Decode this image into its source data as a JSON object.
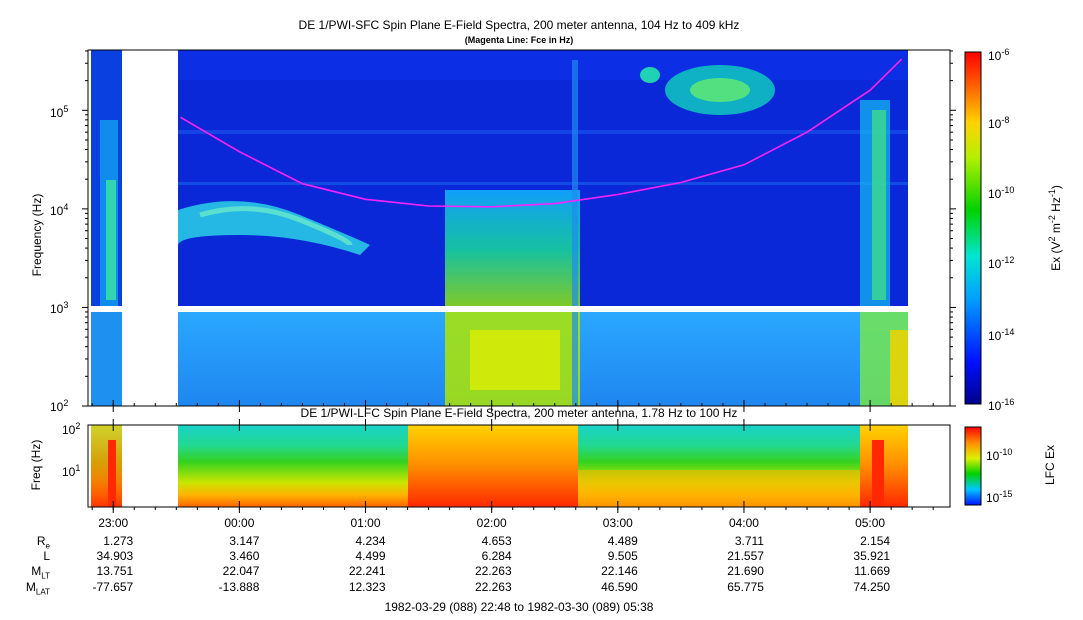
{
  "colors": {
    "magenta_line": "#ff22ff",
    "background_spectrum": "#0a28d8",
    "lfc_floor": "#19d2c8"
  },
  "chart_data": [
    {
      "type": "heatmap",
      "title": "DE 1/PWI-SFC  Spin Plane E-Field Spectra, 200 meter antenna, 104 Hz to 409 kHz",
      "subtitle": "(Magenta Line: Fce in Hz)",
      "ylabel": "Frequency (Hz)",
      "yscale": "log",
      "ylim": [
        100,
        409000
      ],
      "y_ticks": [
        {
          "value": 100,
          "base": "10",
          "exp": "2"
        },
        {
          "value": 1000,
          "base": "10",
          "exp": "3"
        },
        {
          "value": 10000,
          "base": "10",
          "exp": "4"
        },
        {
          "value": 100000,
          "base": "10",
          "exp": "5"
        }
      ],
      "colorbar": {
        "label_prefix": "Ex (V",
        "label_sup1": "2",
        "label_mid": " m",
        "label_sup2": "-2",
        "label_mid2": " Hz",
        "label_sup3": "-1",
        "label_suffix": ")",
        "scale": "log",
        "range": [
          1e-16,
          1e-06
        ],
        "ticks": [
          {
            "base": "10",
            "exp": "-6"
          },
          {
            "base": "10",
            "exp": "-8"
          },
          {
            "base": "10",
            "exp": "-10"
          },
          {
            "base": "10",
            "exp": "-12"
          },
          {
            "base": "10",
            "exp": "-14"
          },
          {
            "base": "10",
            "exp": "-16"
          }
        ]
      },
      "data_gaps": [
        [
          "22:48",
          "22:50"
        ],
        [
          "23:04",
          "23:32"
        ]
      ],
      "fce_line": [
        {
          "t": "23:32",
          "fce": 85000
        },
        {
          "t": "00:00",
          "fce": 38000
        },
        {
          "t": "00:30",
          "fce": 18000
        },
        {
          "t": "01:00",
          "fce": 12500
        },
        {
          "t": "01:30",
          "fce": 10700
        },
        {
          "t": "02:00",
          "fce": 10500
        },
        {
          "t": "02:30",
          "fce": 11300
        },
        {
          "t": "03:00",
          "fce": 14000
        },
        {
          "t": "03:30",
          "fce": 18500
        },
        {
          "t": "04:00",
          "fce": 28000
        },
        {
          "t": "04:30",
          "fce": 60000
        },
        {
          "t": "05:00",
          "fce": 160000
        },
        {
          "t": "05:15",
          "fce": 330000
        }
      ]
    },
    {
      "type": "heatmap",
      "title": "DE 1/PWI-LFC  Spin Plane E-Field Spectra, 200 meter antenna, 1.78 Hz to 100 Hz",
      "ylabel": "Freq (Hz)",
      "yscale": "log",
      "ylim": [
        1.78,
        100
      ],
      "y_ticks": [
        {
          "value": 10,
          "base": "10",
          "exp": "1"
        },
        {
          "value": 100,
          "base": "10",
          "exp": "2"
        }
      ],
      "colorbar": {
        "label": "LFC Ex",
        "scale": "log",
        "ticks": [
          {
            "base": "10",
            "exp": "-10"
          },
          {
            "base": "10",
            "exp": "-15"
          }
        ]
      },
      "data_gaps": [
        [
          "22:48",
          "22:50"
        ],
        [
          "23:04",
          "23:32"
        ]
      ]
    }
  ],
  "x_axis": {
    "time_range": [
      "22:48",
      "05:38"
    ],
    "tick_labels": [
      "23:00",
      "00:00",
      "01:00",
      "02:00",
      "03:00",
      "04:00",
      "05:00"
    ],
    "footer": "1982-03-29 (088) 22:48 to 1982-03-30 (089) 05:38"
  },
  "ephemeris": [
    {
      "label": "R",
      "sub": "e",
      "values": [
        "1.273",
        "3.147",
        "4.234",
        "4.653",
        "4.489",
        "3.711",
        "2.154"
      ]
    },
    {
      "label": "L",
      "sub": "",
      "values": [
        "34.903",
        "3.460",
        "4.499",
        "6.284",
        "9.505",
        "21.557",
        "35.921"
      ]
    },
    {
      "label": "M",
      "sub": "LT",
      "values": [
        "13.751",
        "22.047",
        "22.241",
        "22.263",
        "22.146",
        "21.690",
        "11.669"
      ]
    },
    {
      "label": "M",
      "sub": "LAT",
      "values": [
        "-77.657",
        "-13.888",
        "12.323",
        "22.263",
        "46.590",
        "65.775",
        "74.250"
      ]
    }
  ]
}
